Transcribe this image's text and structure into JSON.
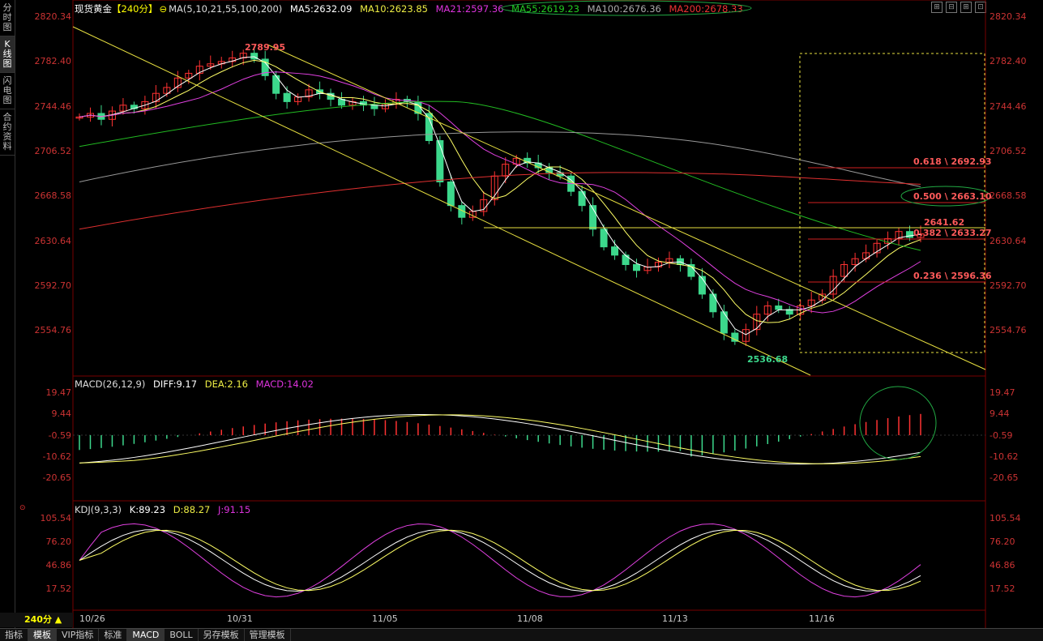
{
  "left_tabs": [
    {
      "label": "分\n时\n图",
      "active": false
    },
    {
      "label": "K\n线\n图",
      "active": true
    },
    {
      "label": "闪\n电\n图",
      "active": false
    },
    {
      "label": "合\n约\n资\n料",
      "active": false
    }
  ],
  "header": {
    "symbol": "现货黄金",
    "period_tag": "【240分】",
    "ma_params": "MA(5,10,21,55,100,200)",
    "ma5": "MA5:2632.09",
    "ma10": "MA10:2623.85",
    "ma21": "MA21:2597.36",
    "ma55": "MA55:2619.23",
    "ma100": "MA100:2676.36",
    "ma200": "MA200:2678.33"
  },
  "price_axis": [
    "2820.34",
    "2782.40",
    "2744.46",
    "2706.52",
    "2668.58",
    "2630.64",
    "2592.70",
    "2554.76"
  ],
  "price_annotations": {
    "high": "2789.95",
    "low": "2536.68",
    "recent_high": "2641.62",
    "fib_618": "0.618 \\ 2692.93",
    "fib_500": "0.500 \\ 2663.10",
    "fib_382": "0.382 \\ 2633.27",
    "fib_236": "0.236 \\ 2596.36"
  },
  "macd": {
    "title": "MACD(26,12,9)",
    "diff": "DIFF:9.17",
    "dea": "DEA:2.16",
    "macd": "MACD:14.02",
    "axis": [
      "19.47",
      "9.44",
      "-0.59",
      "-10.62",
      "-20.65"
    ]
  },
  "kdj": {
    "title": "KDJ(9,3,3)",
    "k": "K:89.23",
    "d": "D:88.27",
    "j": "J:91.15",
    "axis": [
      "105.54",
      "76.20",
      "46.86",
      "17.52"
    ]
  },
  "dates": [
    "10/26",
    "10/31",
    "11/05",
    "11/08",
    "11/13",
    "11/16"
  ],
  "period_label": "240分 ▲",
  "bottom_tabs": [
    {
      "label": "指标",
      "active": false
    },
    {
      "label": "模板",
      "active": true
    },
    {
      "label": "VIP指标",
      "active": false
    },
    {
      "label": "标准",
      "active": false
    },
    {
      "label": "MACD",
      "active": true
    },
    {
      "label": "BOLL",
      "active": false
    },
    {
      "label": "另存模板",
      "active": false
    },
    {
      "label": "管理模板",
      "active": false
    }
  ],
  "colors": {
    "up": "#ff3232",
    "down": "#3cd88c",
    "ma5": "#ffffff",
    "ma10": "#ffff66",
    "ma21": "#e040e0",
    "ma55": "#22bb22",
    "ma100": "#999999",
    "ma200": "#e03030",
    "channel": "#e8e040",
    "fib": "#d02020",
    "oval": "#22aa44"
  }
}
